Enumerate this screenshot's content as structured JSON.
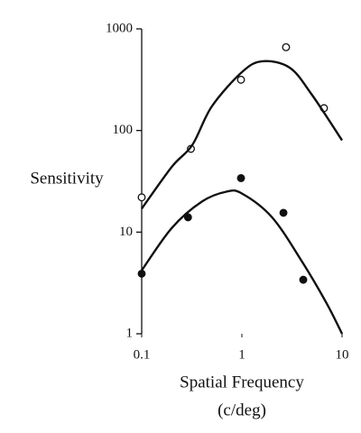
{
  "chart_data": {
    "type": "scatter",
    "xlabel": "Spatial Frequency",
    "xlabel_unit": "(c/deg)",
    "ylabel": "Sensitivity",
    "xscale": "log",
    "yscale": "log",
    "xlim": [
      0.1,
      10
    ],
    "ylim": [
      1,
      1000
    ],
    "xticks": [
      0.1,
      1,
      10
    ],
    "yticks": [
      1,
      10,
      100,
      1000
    ],
    "series": [
      {
        "kind": "points",
        "marker": "open",
        "color": "#111",
        "x": [
          0.1,
          0.31,
          0.98,
          2.76,
          6.6
        ],
        "values": [
          22,
          66,
          316,
          660,
          166
        ]
      },
      {
        "kind": "points",
        "marker": "filled",
        "color": "#111",
        "x": [
          0.1,
          0.29,
          0.98,
          2.6,
          4.1
        ],
        "values": [
          3.9,
          14,
          34,
          15.5,
          3.4
        ]
      },
      {
        "kind": "curve",
        "color": "#111",
        "x": [
          0.1,
          0.2,
          0.32,
          0.5,
          1,
          1.6,
          3,
          5,
          10
        ],
        "values": [
          17,
          44,
          72,
          172,
          375,
          480,
          415,
          225,
          80
        ]
      },
      {
        "kind": "curve",
        "color": "#111",
        "x": [
          0.1,
          0.2,
          0.4,
          0.7,
          1,
          2,
          4,
          7,
          10
        ],
        "values": [
          4.2,
          11,
          20,
          25,
          24,
          14,
          5.1,
          2,
          1
        ]
      }
    ]
  }
}
